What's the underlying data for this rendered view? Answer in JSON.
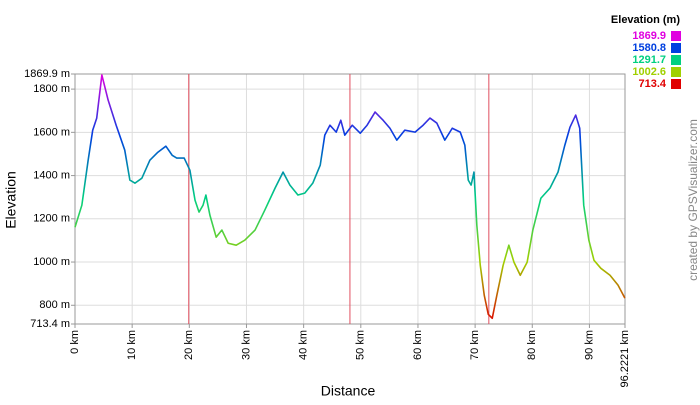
{
  "chart_data": {
    "type": "line",
    "xlabel": "Distance",
    "ylabel": "Elevation",
    "credit": "created by GPSVisualizer.com",
    "legend_title": "Elevation (m)",
    "legend_values": [
      1869.9,
      1580.8,
      1291.7,
      1002.6,
      713.4
    ],
    "legend_colors": [
      "#e000e0",
      "#0040e0",
      "#00d080",
      "#a0d000",
      "#e00000"
    ],
    "x": [
      0,
      1.2,
      2.3,
      3.1,
      3.8,
      4.7,
      5.8,
      7.2,
      8.7,
      9.6,
      10.5,
      11.7,
      13.1,
      14.5,
      15.9,
      17.0,
      17.8,
      19.1,
      20.1,
      21.0,
      21.7,
      22.4,
      22.9,
      23.6,
      24.7,
      25.7,
      26.8,
      28.2,
      29.7,
      31.5,
      33.2,
      35.0,
      36.4,
      37.6,
      39.0,
      40.2,
      41.6,
      42.9,
      43.7,
      44.6,
      45.7,
      46.5,
      47.2,
      48.5,
      49.9,
      51.1,
      52.5,
      53.9,
      55.1,
      56.3,
      57.7,
      59.5,
      60.9,
      62.1,
      63.3,
      64.7,
      66.0,
      67.4,
      68.2,
      68.8,
      69.3,
      69.8,
      70.3,
      70.9,
      71.6,
      72.3,
      73.0,
      73.8,
      74.9,
      75.9,
      76.8,
      77.9,
      79.1,
      80.1,
      81.5,
      83.1,
      84.5,
      85.7,
      86.6,
      87.6,
      88.3,
      89.0,
      89.9,
      90.8,
      92.0,
      93.6,
      95.0,
      96.2
    ],
    "series": [
      {
        "name": "Elevation",
        "values": [
          1161,
          1263,
          1471,
          1610,
          1666,
          1865,
          1749,
          1633,
          1518,
          1379,
          1365,
          1388,
          1471,
          1508,
          1536,
          1494,
          1481,
          1481,
          1425,
          1286,
          1231,
          1263,
          1310,
          1217,
          1115,
          1148,
          1087,
          1078,
          1101,
          1148,
          1240,
          1342,
          1416,
          1356,
          1310,
          1319,
          1365,
          1448,
          1587,
          1633,
          1601,
          1656,
          1587,
          1633,
          1596,
          1633,
          1694,
          1656,
          1619,
          1564,
          1610,
          1601,
          1633,
          1666,
          1643,
          1564,
          1619,
          1601,
          1541,
          1379,
          1356,
          1416,
          1170,
          985,
          846,
          758,
          740,
          846,
          985,
          1078,
          999,
          939,
          999,
          1148,
          1295,
          1342,
          1416,
          1541,
          1624,
          1680,
          1619,
          1263,
          1101,
          1008,
          971,
          939,
          893,
          833
        ]
      }
    ],
    "markers": [
      19.9,
      48.1,
      72.4
    ],
    "marker_color": "#e05060",
    "xlim": [
      0,
      96.2221
    ],
    "ylim": [
      713.4,
      1869.9
    ],
    "xticks": [
      {
        "value": 0,
        "label": "0 km"
      },
      {
        "value": 10,
        "label": "10 km"
      },
      {
        "value": 20,
        "label": "20 km"
      },
      {
        "value": 30,
        "label": "30 km"
      },
      {
        "value": 40,
        "label": "40 km"
      },
      {
        "value": 50,
        "label": "50 km"
      },
      {
        "value": 60,
        "label": "60 km"
      },
      {
        "value": 70,
        "label": "70 km"
      },
      {
        "value": 80,
        "label": "80 km"
      },
      {
        "value": 90,
        "label": "90 km"
      },
      {
        "value": 96.2221,
        "label": "96.2221 km"
      }
    ],
    "yticks": [
      {
        "value": 713.4,
        "label": "713.4 m"
      },
      {
        "value": 800,
        "label": "800 m"
      },
      {
        "value": 1000,
        "label": "1000 m"
      },
      {
        "value": 1200,
        "label": "1200 m"
      },
      {
        "value": 1400,
        "label": "1400 m"
      },
      {
        "value": 1600,
        "label": "1600 m"
      },
      {
        "value": 1800,
        "label": "1800 m"
      },
      {
        "value": 1869.9,
        "label": "1869.9 m"
      }
    ],
    "grid": true
  }
}
